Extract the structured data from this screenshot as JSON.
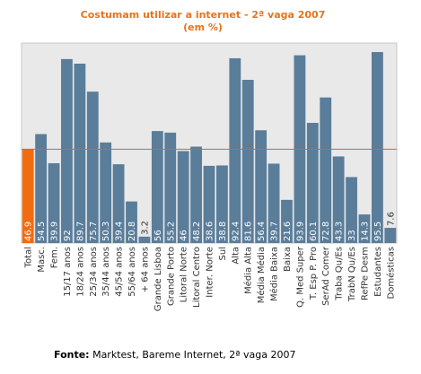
{
  "chart_data": {
    "type": "bar",
    "title": "Costumam utilizar a internet  - 2ª vaga 2007",
    "subtitle": "(em %)",
    "ylim": [
      0,
      100
    ],
    "reference_line": 46.9,
    "grid": false,
    "highlight_color": "#f26b0f",
    "bar_color": "#5a7d9a",
    "line_color": "#d2691e",
    "categories": [
      "Total",
      "Masc.",
      "Fem.",
      "15/17 anos",
      "18/24 anos",
      "25/34 anos",
      "35/44 anos",
      "45/54 anos",
      "55/64 anos",
      "+ 64 anos",
      "Grande Lisboa",
      "Grande Porto",
      "Litoral Norte",
      "Litoral Centro",
      "Inter. Norte",
      "Sul",
      "Alta",
      "Média Alta",
      "Média Média",
      "Média Baixa",
      "Baixa",
      "Q. Med Super",
      "T. Esp P. Pro",
      "SerAd Comer",
      "Traba Qu/Es",
      "TrabN Qu/Es",
      "RefPe Desm",
      "Estudantes",
      "Domésticas"
    ],
    "values": [
      46.9,
      54.5,
      39.9,
      92,
      89.7,
      75.7,
      50.3,
      39.4,
      20.8,
      3.2,
      56,
      55.2,
      46,
      48.2,
      38.6,
      38.8,
      92.4,
      81.6,
      56.4,
      39.7,
      21.6,
      93.9,
      60.1,
      72.8,
      43.3,
      33,
      14.3,
      95.5,
      7.6
    ],
    "value_labels": [
      "46.9",
      "54.5",
      "39.9",
      "92",
      "89.7",
      "75.7",
      "50.3",
      "39.4",
      "20.8",
      "3.2",
      "56",
      "55.2",
      "46",
      "48.2",
      "38.6",
      "38.8",
      "92.4",
      "81.6",
      "56.4",
      "39.7",
      "21.6",
      "93.9",
      "60.1",
      "72.8",
      "43.3",
      "33",
      "14.3",
      "95.5",
      "7.6"
    ],
    "highlight_index": 0
  },
  "source": {
    "label": "Fonte:",
    "text": " Marktest, Bareme Internet, 2ª vaga 2007"
  }
}
